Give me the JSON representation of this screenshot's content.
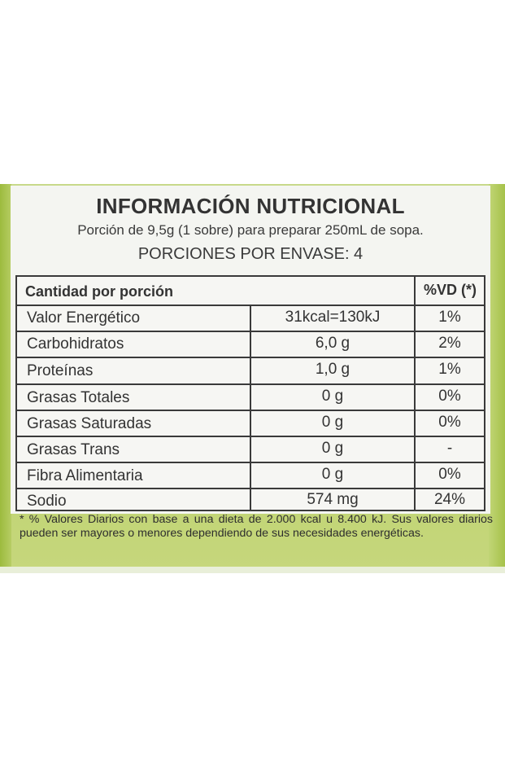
{
  "title": "INFORMACIÓN NUTRICIONAL",
  "serving": "Porción de 9,5g (1 sobre) para preparar 250mL de sopa.",
  "servings_per_pack": "PORCIONES POR ENVASE: 4",
  "table": {
    "header": {
      "quantity": "Cantidad por porción",
      "dv": "%VD (*)"
    },
    "rows": [
      {
        "name": "Valor Energético",
        "amount": "31kcal=130kJ",
        "dv": "1%"
      },
      {
        "name": "Carbohidratos",
        "amount": "6,0 g",
        "dv": "2%"
      },
      {
        "name": "Proteínas",
        "amount": "1,0 g",
        "dv": "1%"
      },
      {
        "name": "Grasas Totales",
        "amount": "0 g",
        "dv": "0%"
      },
      {
        "name": "Grasas Saturadas",
        "amount": "0 g",
        "dv": "0%"
      },
      {
        "name": "Grasas Trans",
        "amount": "0 g",
        "dv": "-"
      },
      {
        "name": "Fibra Alimentaria",
        "amount": "0 g",
        "dv": "0%"
      },
      {
        "name": "Sodio",
        "amount": "574 mg",
        "dv": "24%"
      }
    ]
  },
  "footnote": "* % Valores Diarios con base a una dieta de 2.000 kcal u 8.400 kJ. Sus valores diarios pueden ser mayores o menores dependiendo de sus necesidades energéticas."
}
